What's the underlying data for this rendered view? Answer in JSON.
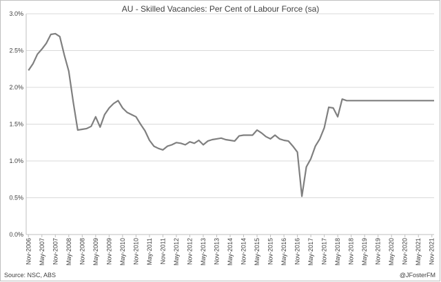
{
  "chart_data": {
    "type": "line",
    "title": "AU - Skilled Vacancies: Per Cent of Labour Force (sa)",
    "xlabel": "",
    "ylabel": "",
    "ylim": [
      0,
      3.0
    ],
    "yticks": [
      "0.0%",
      "0.5%",
      "1.0%",
      "1.5%",
      "2.0%",
      "2.5%",
      "3.0%"
    ],
    "x_tick_labels": [
      "Nov-2006",
      "May-2007",
      "Nov-2007",
      "May-2008",
      "Nov-2008",
      "May-2009",
      "Nov-2009",
      "May-2010",
      "Nov-2010",
      "May-2011",
      "Nov-2011",
      "May-2012",
      "Nov-2012",
      "May-2013",
      "Nov-2013",
      "May-2014",
      "Nov-2014",
      "May-2015",
      "Nov-2015",
      "May-2016",
      "Nov-2016",
      "May-2017",
      "Nov-2017",
      "May-2018",
      "Nov-2018",
      "May-2019",
      "Nov-2019",
      "May-2020",
      "Nov-2020",
      "May-2021",
      "Nov-2021"
    ],
    "grid": true,
    "legend": "none",
    "line_color": "#7f7f7f",
    "series": [
      {
        "x": [
          "2006-11",
          "2007-01",
          "2007-03",
          "2007-05",
          "2007-07",
          "2007-09",
          "2007-11",
          "2008-01",
          "2008-03",
          "2008-05",
          "2008-07",
          "2008-09",
          "2008-11",
          "2009-01",
          "2009-03",
          "2009-05",
          "2009-07",
          "2009-09",
          "2009-11",
          "2010-01",
          "2010-03",
          "2010-05",
          "2010-07",
          "2010-09",
          "2010-11",
          "2011-01",
          "2011-03",
          "2011-05",
          "2011-07",
          "2011-09",
          "2011-11",
          "2012-01",
          "2012-03",
          "2012-05",
          "2012-07",
          "2012-09",
          "2012-11",
          "2013-01",
          "2013-03",
          "2013-05",
          "2013-07",
          "2013-09",
          "2013-11",
          "2014-01",
          "2014-03",
          "2014-05",
          "2014-07",
          "2014-09",
          "2014-11",
          "2015-01",
          "2015-03",
          "2015-05",
          "2015-07",
          "2015-09",
          "2015-11",
          "2016-01",
          "2016-03",
          "2016-05",
          "2016-07",
          "2016-09",
          "2016-11",
          "2017-01",
          "2017-03",
          "2017-05",
          "2017-07",
          "2017-09",
          "2017-11",
          "2018-01",
          "2018-03",
          "2018-05",
          "2018-07",
          "2018-09",
          "2018-11",
          "2019-01",
          "2019-03",
          "2019-05",
          "2019-07",
          "2019-09",
          "2019-11",
          "2020-01",
          "2020-03",
          "2020-04",
          "2020-05",
          "2020-07",
          "2020-09",
          "2020-11",
          "2021-01",
          "2021-03",
          "2021-05",
          "2021-07",
          "2021-09",
          "2021-11",
          "2021-12"
        ],
        "values": [
          2.23,
          2.32,
          2.45,
          2.52,
          2.6,
          2.72,
          2.73,
          2.69,
          2.44,
          2.22,
          1.8,
          1.42,
          1.43,
          1.44,
          1.47,
          1.6,
          1.46,
          1.63,
          1.72,
          1.78,
          1.82,
          1.72,
          1.66,
          1.63,
          1.6,
          1.5,
          1.41,
          1.28,
          1.2,
          1.17,
          1.15,
          1.2,
          1.22,
          1.25,
          1.24,
          1.22,
          1.26,
          1.24,
          1.28,
          1.22,
          1.27,
          1.29,
          1.3,
          1.31,
          1.29,
          1.28,
          1.27,
          1.34,
          1.35,
          1.35,
          1.35,
          1.42,
          1.38,
          1.33,
          1.3,
          1.35,
          1.3,
          1.28,
          1.27,
          1.2,
          1.12,
          0.52,
          0.92,
          1.03,
          1.2,
          1.3,
          1.45,
          1.73,
          1.72,
          1.6,
          1.84,
          1.82,
          1.82,
          1.82,
          1.82,
          1.82,
          1.82,
          1.82,
          1.82,
          1.82,
          1.82,
          1.82,
          1.82,
          1.82,
          1.82,
          1.82,
          1.82,
          1.82,
          1.82,
          1.82,
          1.82,
          1.82,
          1.82
        ]
      }
    ]
  },
  "footer": {
    "source": "Source: NSC, ABS",
    "credit": "@JFosterFM"
  }
}
